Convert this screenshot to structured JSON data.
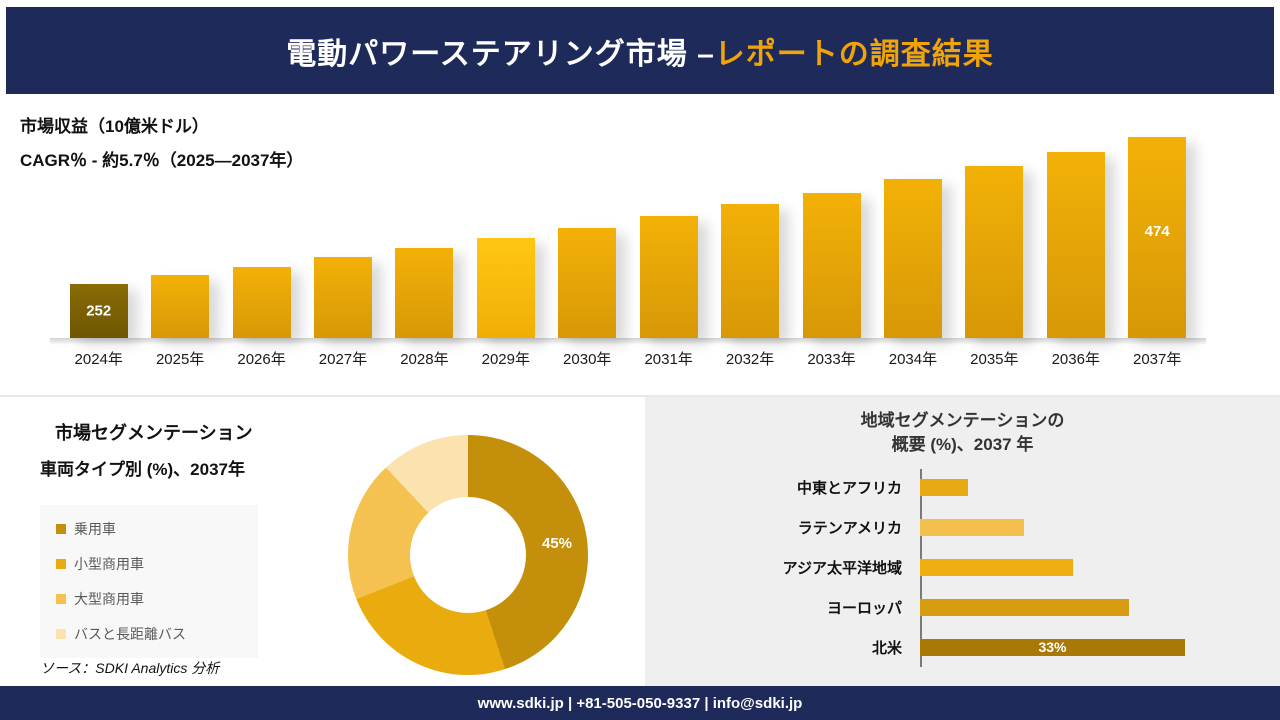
{
  "header": {
    "title_main": "電動パワーステアリング市場 –",
    "title_accent": "レポートの調査結果"
  },
  "chart_data": [
    {
      "id": "revenue-by-year",
      "type": "bar",
      "title": "市場収益（10億米ドル）",
      "subtitle": "CAGR％ - 約5.7％（2025―2037年）",
      "categories": [
        "2024年",
        "2025年",
        "2026年",
        "2027年",
        "2028年",
        "2029年",
        "2030年",
        "2031年",
        "2032年",
        "2033年",
        "2034年",
        "2035年",
        "2036年",
        "2037年"
      ],
      "values": [
        252,
        265,
        278,
        292,
        306,
        321,
        337,
        354,
        372,
        390,
        410,
        430,
        452,
        474
      ],
      "shown_value_labels": [
        252,
        474
      ],
      "ylim": [
        170,
        480
      ],
      "grid": false,
      "legend": false,
      "highlight_index": 5,
      "bar_color": "#E9A90E",
      "first_bar_color": "#7C6004"
    },
    {
      "id": "vehicle-type-share",
      "type": "pie",
      "title": "市場セグメンテーション",
      "subtitle": "車両タイプ別 (%)、2037年",
      "labels": [
        "乗用車",
        "小型商用車",
        "大型商用車",
        "バスと長距離バス"
      ],
      "values": [
        45,
        24,
        19,
        12
      ],
      "colors": [
        "#C4900C",
        "#E9AB0E",
        "#F5C252",
        "#FBE3B0"
      ],
      "shown_label": "45%",
      "legend_position": "left"
    },
    {
      "id": "regional-share",
      "type": "bar",
      "orientation": "horizontal",
      "title_line1": "地域セグメンテーションの",
      "title_line2": "概要 (%)、2037 年",
      "categories": [
        "中東とアフリカ",
        "ラテンアメリカ",
        "アジア太平洋地域",
        "ヨーロッパ",
        "北米"
      ],
      "values": [
        6,
        13,
        19,
        26,
        33
      ],
      "colors": [
        "#E7A912",
        "#F3C04C",
        "#EFAE10",
        "#D89C10",
        "#A97908"
      ],
      "label_index": 4,
      "label_text": "33%",
      "xlim": [
        0,
        33
      ],
      "grid": false
    }
  ],
  "source_note": "ソース：SDKI Analytics 分析",
  "footer": {
    "contact_line": "www.sdki.jp | +81-505-050-9337 | info@sdki.jp"
  },
  "colors": {
    "navy": "#1E2A5A",
    "gold_accent": "#F0A40A",
    "panel_gray": "#EFEFEF"
  }
}
